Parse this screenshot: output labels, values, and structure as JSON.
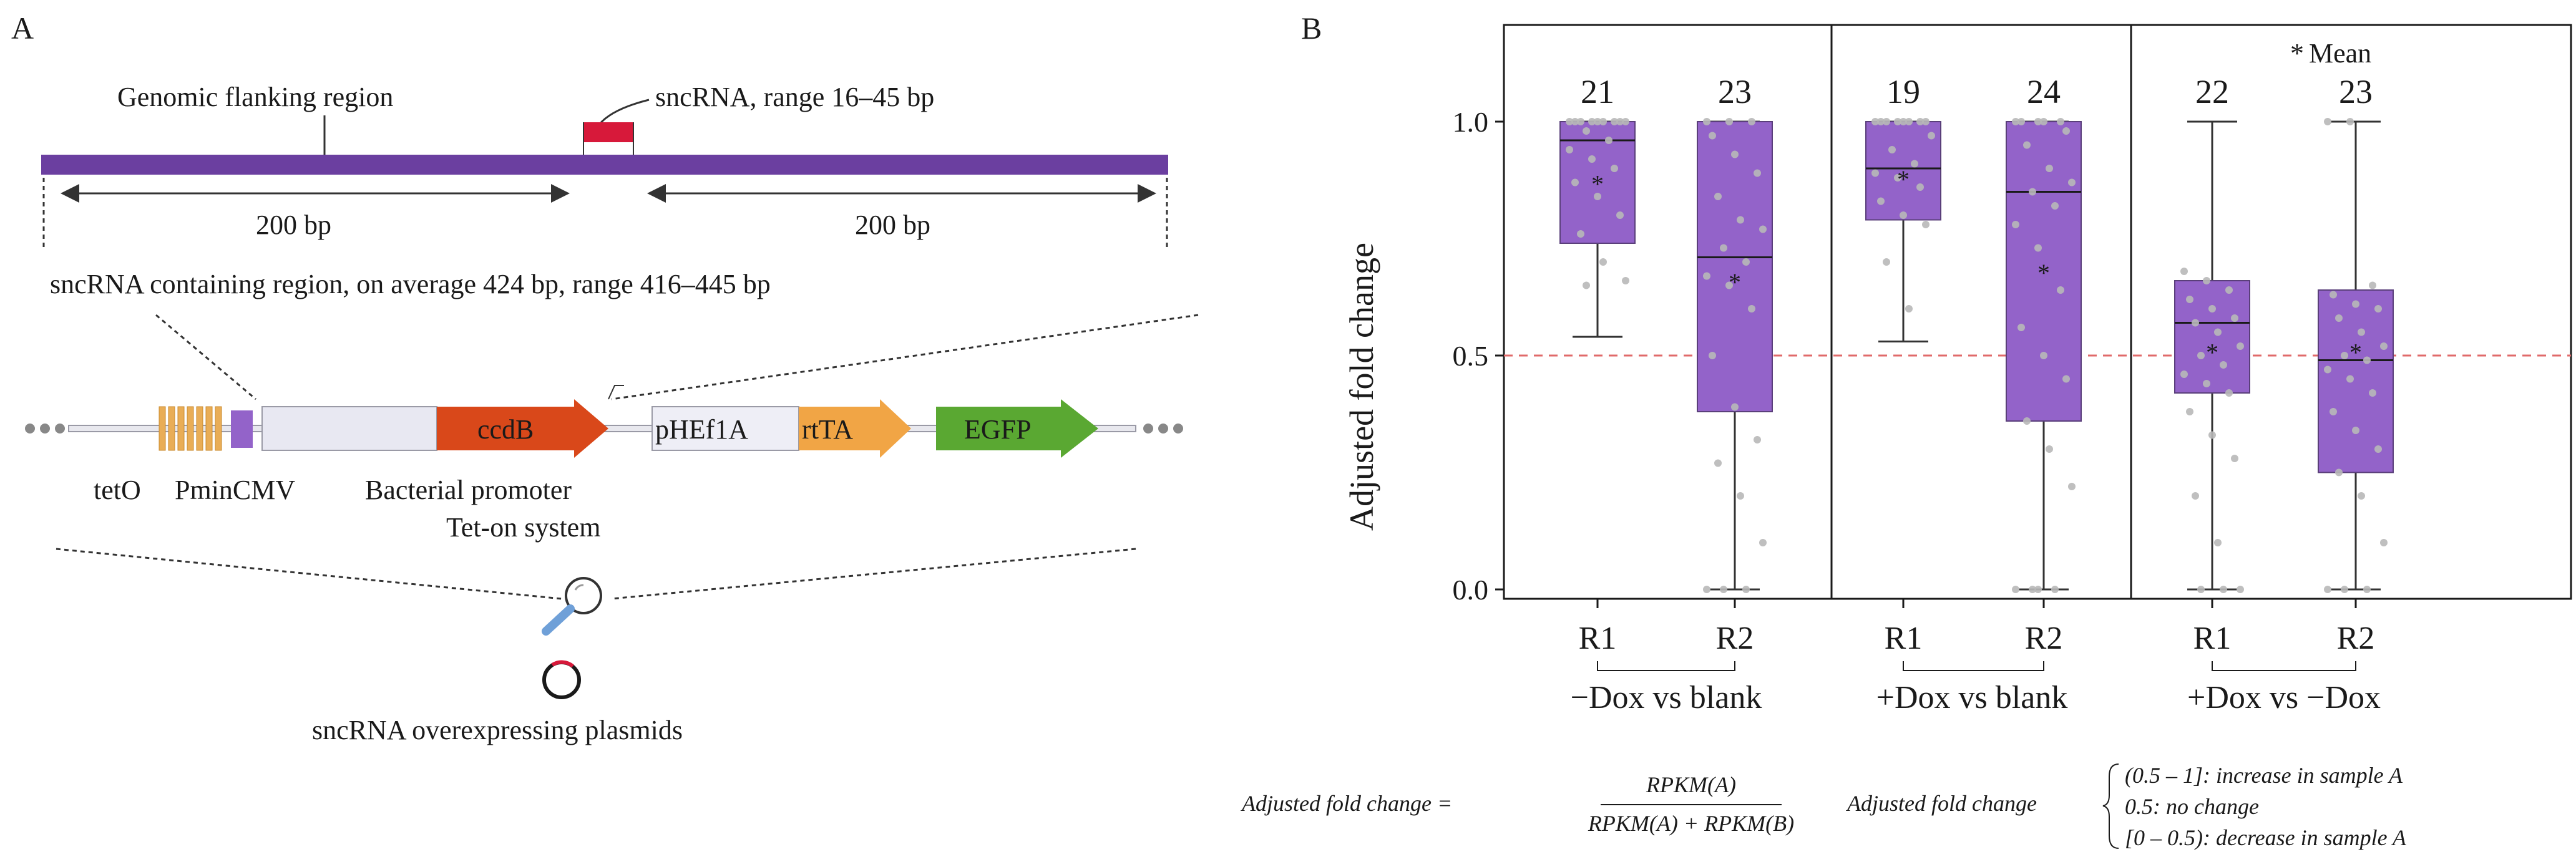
{
  "colors": {
    "purple": "#6b3fa0",
    "box_fill": "#9363c9",
    "box_edge": "#5a3f7a",
    "red": "#d7193a",
    "orange": "#d9481a",
    "rtta": "#f1a545",
    "egfp": "#5aa832",
    "teto": "#e9ad56",
    "gray_point": "#b8b8b8",
    "dash_red": "#e06a6a"
  },
  "panel_a": {
    "label": "A",
    "genomic_label": "Genomic flanking region",
    "sncrna_label": "sncRNA, range 16–45 bp",
    "left_bp": "200 bp",
    "right_bp": "200 bp",
    "region_label": "sncRNA containing region, on average 424 bp, range 416–445 bp",
    "segments": {
      "ccdb": "ccdB",
      "phef1a": "pHEf1A",
      "rtta": "rtTA",
      "egfp": "EGFP"
    },
    "tet_o": "tetO",
    "pmincmv": "PminCMV",
    "bacterial_promoter": "Bacterial promoter",
    "teton": "Tet-on system",
    "plasmids": "sncRNA overexpressing plasmids"
  },
  "panel_b": {
    "label": "B",
    "ylabel": "Adjusted fold change",
    "yticks": [
      "0.0",
      "0.5",
      "1.0"
    ],
    "legend_mean": "Mean",
    "group_labels": [
      "−Dox vs blank",
      "+Dox vs blank",
      "+Dox vs −Dox"
    ]
  },
  "chart_data": {
    "type": "box",
    "ylabel": "Adjusted fold change",
    "ylim": [
      0,
      1.0
    ],
    "reference_line": 0.5,
    "groups": [
      {
        "name": "−Dox vs blank",
        "boxes": [
          {
            "name": "R1",
            "n": "21",
            "whisker_low": 0.54,
            "q1": 0.74,
            "median": 0.96,
            "q3": 1.0,
            "whisker_high": 1.0,
            "mean": 0.87,
            "points": [
              1.0,
              1.0,
              1.0,
              1.0,
              1.0,
              1.0,
              1.0,
              1.0,
              1.0,
              0.98,
              0.96,
              0.94,
              0.92,
              0.9,
              0.87,
              0.84,
              0.8,
              0.76,
              0.7,
              0.66,
              0.65
            ]
          },
          {
            "name": "R2",
            "n": "23",
            "whisker_low": 0.0,
            "q1": 0.38,
            "median": 0.71,
            "q3": 1.0,
            "whisker_high": 1.0,
            "mean": 0.66,
            "points": [
              1.0,
              1.0,
              1.0,
              0.97,
              0.93,
              0.89,
              0.84,
              0.79,
              0.77,
              0.73,
              0.7,
              0.67,
              0.65,
              0.6,
              0.5,
              0.39,
              0.32,
              0.27,
              0.2,
              0.1,
              0.0,
              0.0,
              0.0
            ]
          }
        ]
      },
      {
        "name": "+Dox vs blank",
        "boxes": [
          {
            "name": "R1",
            "n": "19",
            "whisker_low": 0.53,
            "q1": 0.79,
            "median": 0.9,
            "q3": 1.0,
            "whisker_high": 1.0,
            "mean": 0.88,
            "points": [
              1.0,
              1.0,
              1.0,
              1.0,
              1.0,
              1.0,
              1.0,
              1.0,
              0.97,
              0.94,
              0.91,
              0.89,
              0.88,
              0.86,
              0.83,
              0.8,
              0.78,
              0.7,
              0.6
            ]
          },
          {
            "name": "R2",
            "n": "24",
            "whisker_low": 0.0,
            "q1": 0.36,
            "median": 0.85,
            "q3": 1.0,
            "whisker_high": 1.0,
            "mean": 0.68,
            "points": [
              1.0,
              1.0,
              1.0,
              1.0,
              1.0,
              0.98,
              0.95,
              0.9,
              0.87,
              0.85,
              0.82,
              0.78,
              0.73,
              0.64,
              0.56,
              0.5,
              0.45,
              0.36,
              0.3,
              0.22,
              0.0,
              0.0,
              0.0,
              0.0
            ]
          }
        ]
      },
      {
        "name": "+Dox vs −Dox",
        "boxes": [
          {
            "name": "R1",
            "n": "22",
            "whisker_low": 0.0,
            "q1": 0.42,
            "median": 0.57,
            "q3": 0.66,
            "whisker_high": 1.0,
            "mean": 0.51,
            "points": [
              0.68,
              0.66,
              0.64,
              0.62,
              0.6,
              0.58,
              0.57,
              0.55,
              0.52,
              0.5,
              0.48,
              0.46,
              0.44,
              0.42,
              0.38,
              0.33,
              0.28,
              0.2,
              0.1,
              0.0,
              0.0,
              0.0
            ]
          },
          {
            "name": "R2",
            "n": "23",
            "whisker_low": 0.0,
            "q1": 0.25,
            "median": 0.49,
            "q3": 0.64,
            "whisker_high": 1.0,
            "mean": 0.51,
            "points": [
              1.0,
              1.0,
              0.65,
              0.63,
              0.61,
              0.6,
              0.58,
              0.55,
              0.52,
              0.5,
              0.49,
              0.47,
              0.45,
              0.42,
              0.38,
              0.34,
              0.3,
              0.25,
              0.2,
              0.1,
              0.0,
              0.0,
              0.0
            ]
          }
        ]
      }
    ]
  },
  "formula": {
    "lhs": "Adjusted fold change =",
    "numerator": "RPKM(A)",
    "denominator": "RPKM(A) + RPKM(B)",
    "lhs2": "Adjusted fold change",
    "cases": [
      "(0.5 – 1]: increase in sample A",
      "0.5: no change",
      "[0 – 0.5): decrease in sample A"
    ]
  }
}
